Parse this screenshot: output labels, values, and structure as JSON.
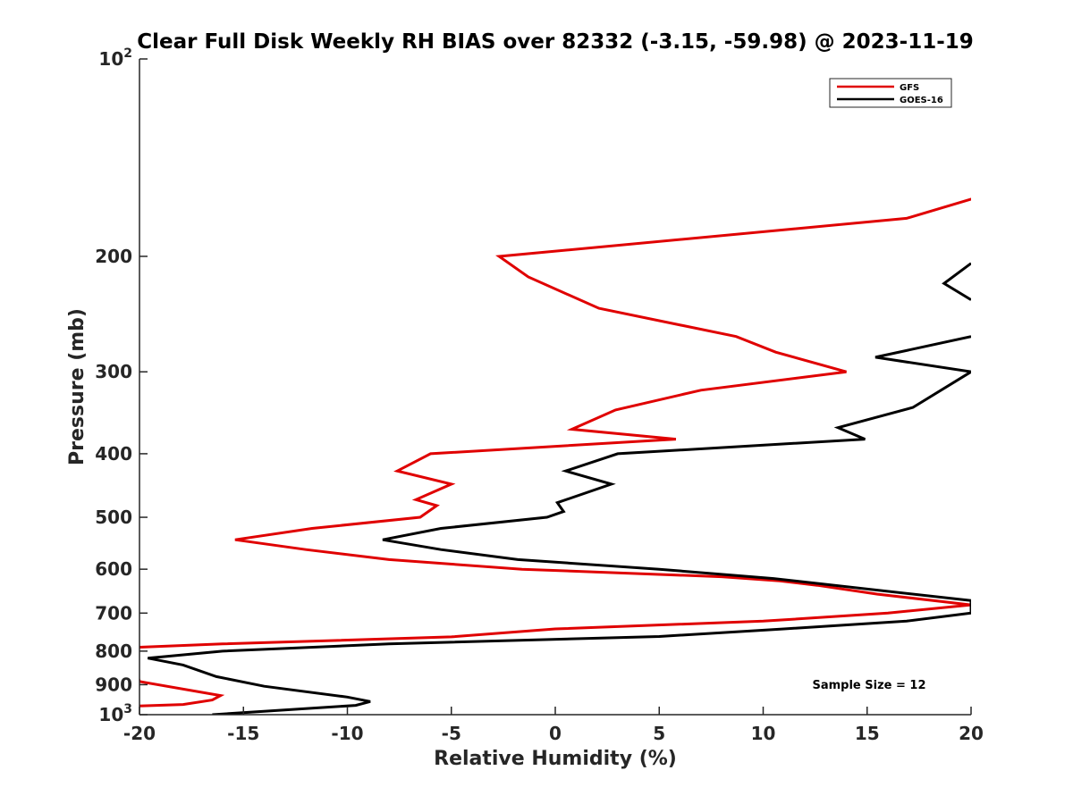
{
  "chart_data": {
    "type": "line",
    "title": "Clear Full Disk Weekly RH BIAS over 82332 (-3.15, -59.98) @ 2023-11-19",
    "xlabel": "Relative Humidity (%)",
    "ylabel": "Pressure (mb)",
    "xlim": [
      -20,
      20
    ],
    "ylim": [
      100,
      1000
    ],
    "y_scale": "log",
    "y_reversed": true,
    "x_ticks": [
      "-20",
      "-15",
      "-10",
      "-5",
      "0",
      "5",
      "10",
      "15",
      "20"
    ],
    "y_ticks": [
      {
        "value": 100,
        "base": "10",
        "exp": "2"
      },
      {
        "value": 200,
        "label": "200"
      },
      {
        "value": 300,
        "label": "300"
      },
      {
        "value": 400,
        "label": "400"
      },
      {
        "value": 500,
        "label": "500"
      },
      {
        "value": 600,
        "label": "600"
      },
      {
        "value": 700,
        "label": "700"
      },
      {
        "value": 800,
        "label": "800"
      },
      {
        "value": 900,
        "label": "900"
      },
      {
        "value": 1000,
        "base": "10",
        "exp": "3"
      }
    ],
    "legend": {
      "position": "top-right"
    },
    "grid": false,
    "annotation": "Sample Size = 12",
    "series": [
      {
        "name": "GFS",
        "color": "#e00000",
        "points": [
          [
            24.0,
            150
          ],
          [
            16.9,
            175
          ],
          [
            -2.7,
            200
          ],
          [
            -1.3,
            215
          ],
          [
            2.1,
            240
          ],
          [
            8.7,
            265
          ],
          [
            10.6,
            280
          ],
          [
            14.0,
            300
          ],
          [
            7.0,
            320
          ],
          [
            2.9,
            343
          ],
          [
            0.8,
            367
          ],
          [
            5.8,
            380
          ],
          [
            -6.0,
            400
          ],
          [
            -7.6,
            425
          ],
          [
            -5.0,
            445
          ],
          [
            -6.7,
            470
          ],
          [
            -5.7,
            480
          ],
          [
            -6.5,
            500
          ],
          [
            -11.7,
            520
          ],
          [
            -15.4,
            541
          ],
          [
            -12.0,
            560
          ],
          [
            -8.0,
            580
          ],
          [
            -1.6,
            600
          ],
          [
            8.0,
            616
          ],
          [
            10.8,
            625
          ],
          [
            12.6,
            635
          ],
          [
            15.5,
            655
          ],
          [
            20.0,
            680
          ],
          [
            16.0,
            700
          ],
          [
            10.0,
            720
          ],
          [
            0.0,
            740
          ],
          [
            -5.0,
            761
          ],
          [
            -16.0,
            780
          ],
          [
            -20.5,
            790
          ],
          [
            -20.0,
            890
          ],
          [
            -16.1,
            935
          ],
          [
            -16.5,
            950
          ],
          [
            -17.9,
            965
          ],
          [
            -20.0,
            970
          ]
        ]
      },
      {
        "name": "GOES-16",
        "color": "#000000",
        "points": [
          [
            20.0,
            205
          ],
          [
            18.7,
            220
          ],
          [
            20.0,
            233
          ],
          [
            null,
            null
          ],
          [
            20.0,
            265
          ],
          [
            15.4,
            285
          ],
          [
            20.0,
            300
          ],
          [
            17.2,
            340
          ],
          [
            13.6,
            365
          ],
          [
            14.9,
            380
          ],
          [
            3.0,
            400
          ],
          [
            0.5,
            425
          ],
          [
            2.7,
            445
          ],
          [
            0.1,
            475
          ],
          [
            0.4,
            490
          ],
          [
            -0.4,
            500
          ],
          [
            -5.5,
            520
          ],
          [
            -8.3,
            541
          ],
          [
            -5.5,
            560
          ],
          [
            -1.8,
            580
          ],
          [
            5.0,
            600
          ],
          [
            10.5,
            620
          ],
          [
            20.0,
            670
          ],
          [
            20.0,
            700
          ],
          [
            16.9,
            720
          ],
          [
            11.0,
            740
          ],
          [
            5.0,
            760
          ],
          [
            -8.0,
            780
          ],
          [
            -16.0,
            800
          ],
          [
            -19.6,
            820
          ],
          [
            -17.9,
            840
          ],
          [
            -16.3,
            875
          ],
          [
            -14.0,
            905
          ],
          [
            -10.0,
            940
          ],
          [
            -8.9,
            955
          ],
          [
            -9.6,
            968
          ],
          [
            -16.5,
            1000
          ]
        ]
      }
    ]
  }
}
